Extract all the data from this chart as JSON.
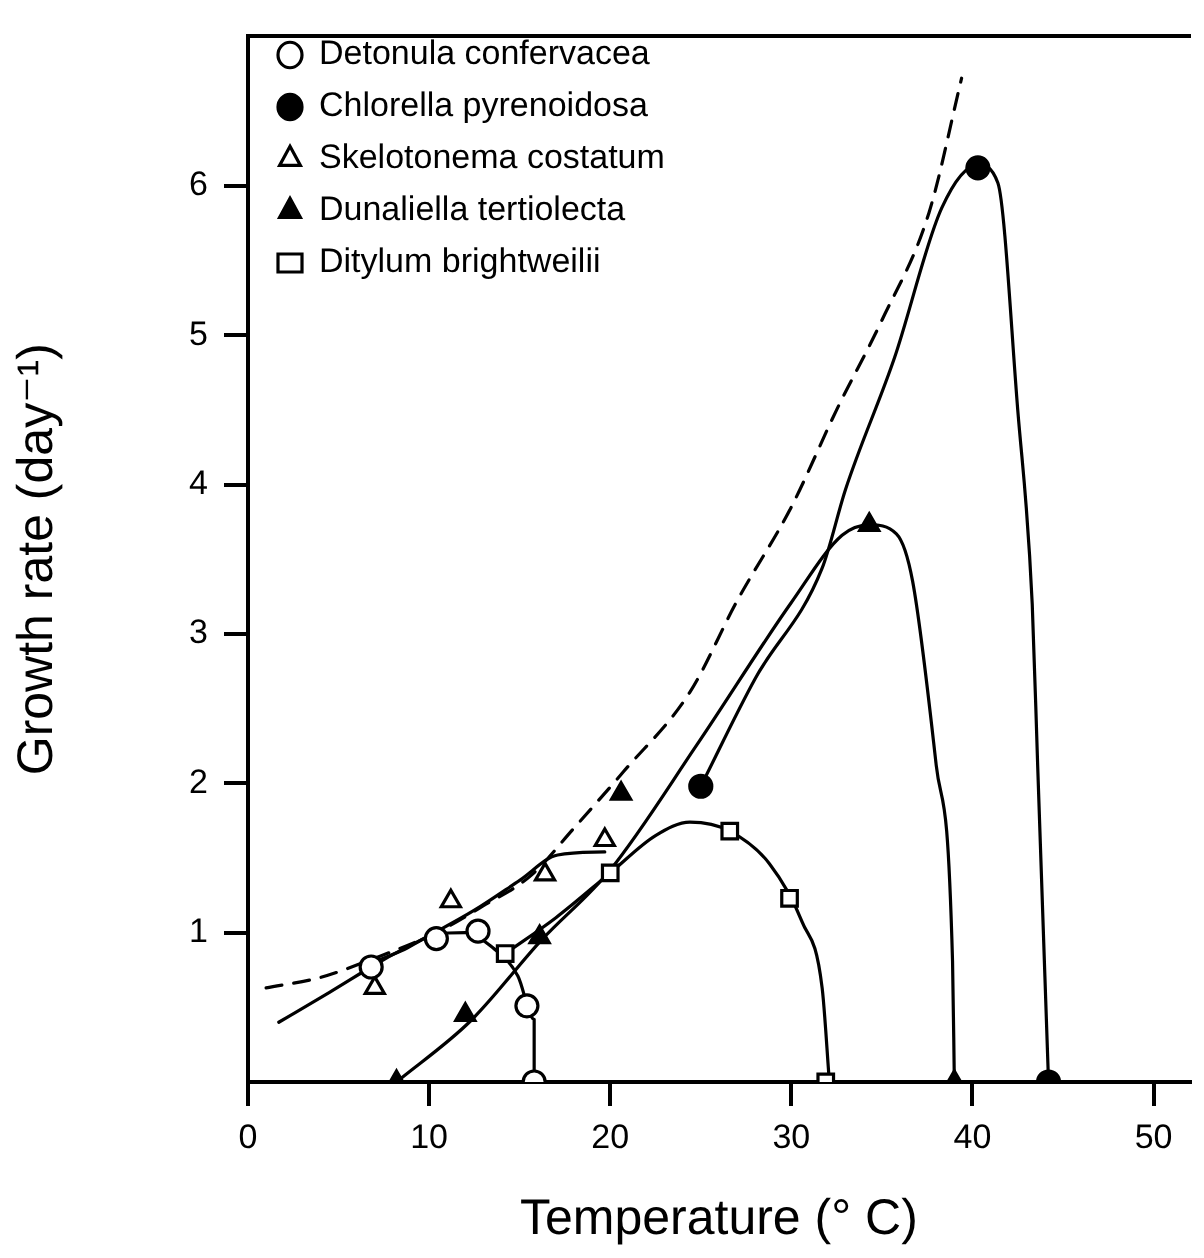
{
  "chart_data": {
    "type": "scatter",
    "xlabel": "Temperature (° C)",
    "ylabel": "Growth rate (day⁻¹)",
    "xlim": [
      0,
      52
    ],
    "ylim": [
      0,
      7
    ],
    "xticks": [
      0,
      10,
      20,
      30,
      40,
      50
    ],
    "yticks": [
      1,
      2,
      3,
      4,
      5,
      6
    ],
    "grid": false,
    "legend": "top left",
    "series": [
      {
        "name": "Detonula confervacea",
        "color": "#ffffff",
        "marker": "circle",
        "x": [
          6.8,
          10.4,
          12.7,
          15.4,
          15.8
        ],
        "values": [
          0.77,
          0.96,
          1.01,
          0.51,
          0
        ]
      },
      {
        "name": "Chlorella pyrenoidosa",
        "color": "#000000",
        "marker": "circle",
        "x": [
          25.0,
          40.3,
          44.2
        ],
        "values": [
          1.98,
          6.12,
          0
        ]
      },
      {
        "name": "Skelotonema costatum",
        "color": "#ffffff",
        "marker": "triangle",
        "x": [
          7.0,
          11.2,
          16.4,
          19.7
        ],
        "values": [
          0.63,
          1.21,
          1.39,
          1.62
        ]
      },
      {
        "name": "Dunaliella tertiolecta",
        "color": "#000000",
        "marker": "triangle",
        "x": [
          8.2,
          12.0,
          16.1,
          20.6,
          34.3,
          39.0
        ],
        "values": [
          0,
          0.45,
          0.97,
          1.93,
          3.73,
          0
        ]
      },
      {
        "name": "Ditylum brightweilii",
        "color": "#ffffff",
        "marker": "square",
        "x": [
          14.2,
          20.0,
          26.6,
          29.9,
          31.9
        ],
        "values": [
          0.86,
          1.4,
          1.68,
          1.23,
          0
        ]
      },
      {
        "type": "line",
        "color": "#000000",
        "marker": "none",
        "line_style": "dashed",
        "x": [
          1.0,
          4.0,
          6.8,
          10.4,
          13.0,
          15.6,
          18.0,
          20.75,
          24.4,
          27.0,
          30.0,
          32.5,
          35.0,
          37.6,
          39.4
        ],
        "values": [
          0.63,
          0.7,
          0.82,
          1.0,
          1.18,
          1.38,
          1.7,
          2.08,
          2.61,
          3.22,
          3.85,
          4.5,
          5.1,
          5.82,
          6.72
        ]
      },
      {
        "type": "line",
        "color": "#000000",
        "marker": "none",
        "line_style": "solid",
        "x": [
          6.5,
          8.5,
          10.4,
          12.0,
          13.4,
          14.9,
          15.8,
          15.8
        ],
        "values": [
          0.78,
          0.88,
          0.99,
          1.0,
          0.91,
          0.71,
          0.42,
          0
        ]
      },
      {
        "type": "line",
        "color": "#000000",
        "marker": "none",
        "line_style": "solid",
        "x": [
          25.0,
          28.0,
          31.7,
          33.0,
          35.7,
          38.3,
          40.3,
          41.4,
          42.5,
          43.3,
          43.6,
          44.2
        ],
        "values": [
          1.98,
          2.7,
          3.44,
          3.97,
          4.85,
          5.85,
          6.14,
          6.02,
          4.5,
          3.2,
          2.12,
          0
        ]
      },
      {
        "type": "line",
        "color": "#000000",
        "marker": "none",
        "line_style": "solid",
        "x": [
          1.7,
          4.5,
          7.5,
          10.0,
          12.5,
          15.0,
          17.1,
          19.7
        ],
        "values": [
          0.4,
          0.6,
          0.82,
          0.98,
          1.15,
          1.35,
          1.52,
          1.54
        ]
      },
      {
        "type": "line",
        "color": "#000000",
        "marker": "none",
        "line_style": "solid",
        "x": [
          8.2,
          12.3,
          16.2,
          20.0,
          24.8,
          30.0,
          32.8,
          34.3,
          35.8,
          36.7,
          38.0,
          38.9,
          39.0
        ],
        "values": [
          0,
          0.41,
          0.95,
          1.42,
          2.26,
          3.21,
          3.66,
          3.73,
          3.67,
          3.35,
          2.12,
          0.81,
          0
        ]
      },
      {
        "type": "line",
        "color": "#000000",
        "marker": "none",
        "line_style": "solid",
        "x": [
          14.2,
          17.0,
          20.0,
          22.5,
          24.4,
          26.6,
          28.8,
          30.6,
          31.7,
          32.1
        ],
        "values": [
          0.86,
          1.1,
          1.4,
          1.65,
          1.74,
          1.68,
          1.46,
          1.07,
          0.63,
          0
        ]
      }
    ]
  }
}
